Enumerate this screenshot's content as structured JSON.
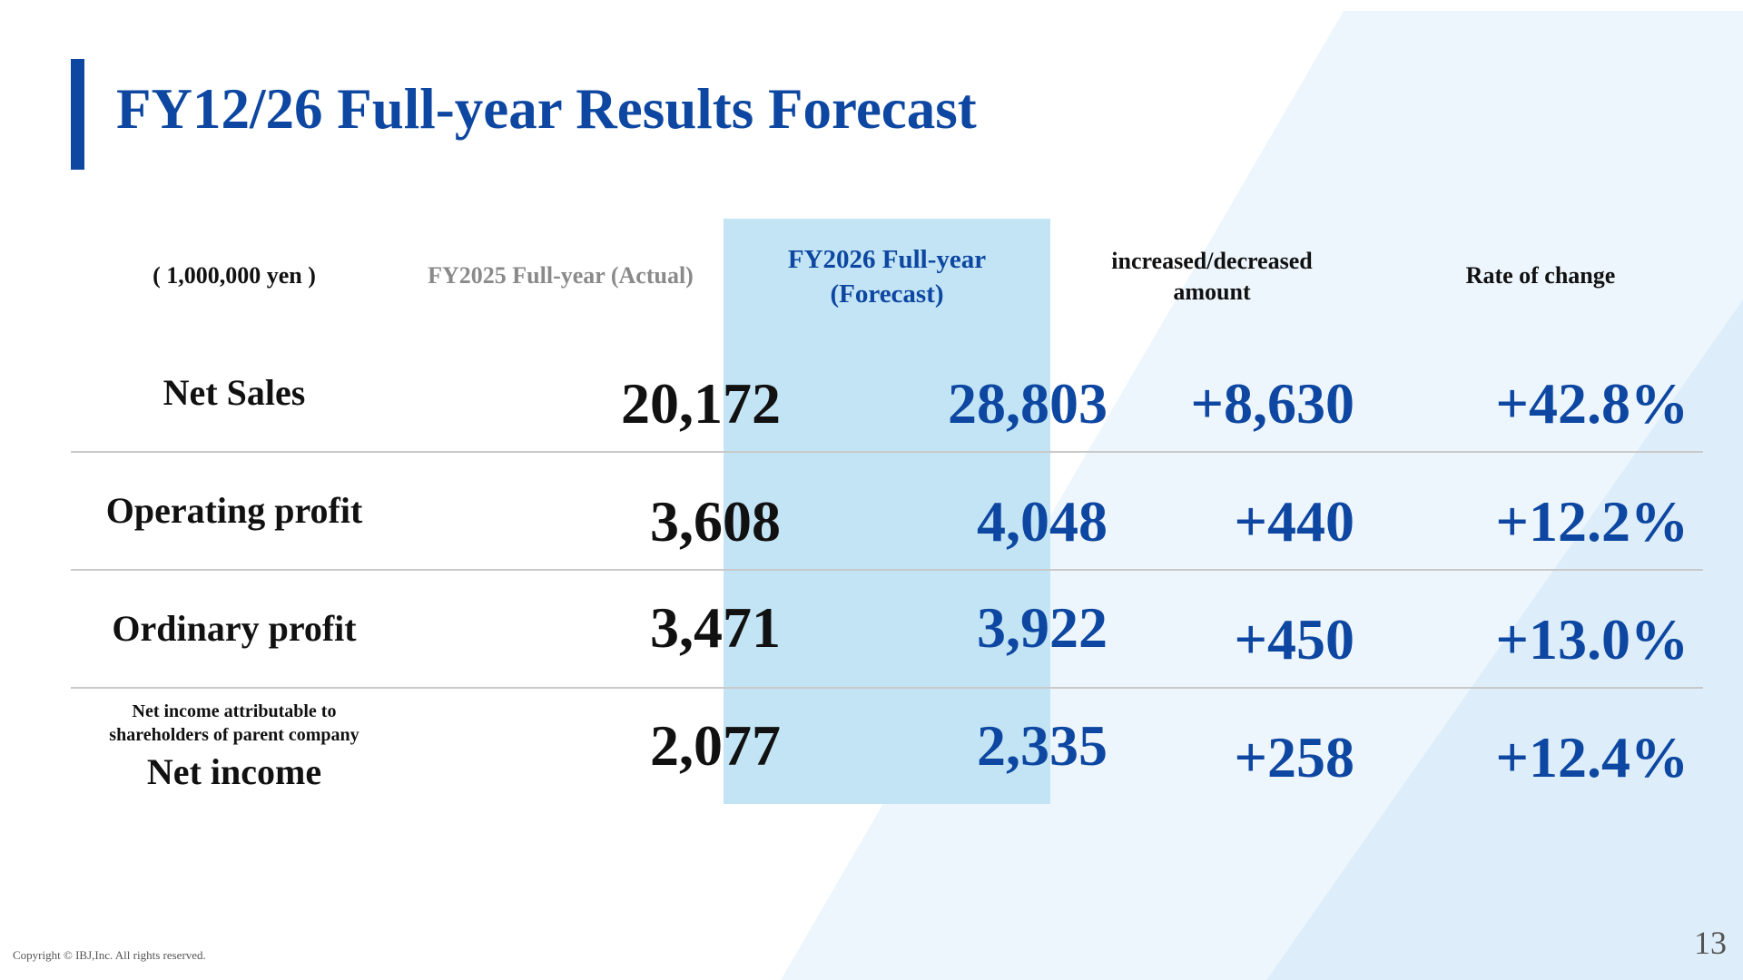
{
  "title": "FY12/26 Full-year Results Forecast",
  "headers": {
    "unit": "( 1,000,000 yen )",
    "prev": "FY2025 Full-year (Actual)",
    "forecast_line1": "FY2026 Full-year",
    "forecast_line2": "(Forecast)",
    "diff_line1": "increased/decreased",
    "diff_line2": "amount",
    "rate": "Rate of change"
  },
  "rows": [
    {
      "label": "Net Sales",
      "prev": "20,172",
      "forecast": "28,803",
      "diff": "+8,630",
      "rate": "+42.8%"
    },
    {
      "label": "Operating profit",
      "prev": "3,608",
      "forecast": "4,048",
      "diff": "+440",
      "rate": "+12.2%"
    },
    {
      "label": "Ordinary profit",
      "prev": "3,471",
      "forecast": "3,922",
      "diff": "+450",
      "rate": "+13.0%"
    },
    {
      "label_small_1": "Net income attributable to",
      "label_small_2": "shareholders of parent company",
      "label": "Net income",
      "prev": "2,077",
      "forecast": "2,335",
      "diff": "+258",
      "rate": "+12.4%"
    }
  ],
  "footer": {
    "copyright": "Copyright © IBJ,Inc. All rights reserved.",
    "page_number": "13"
  },
  "colors": {
    "accent": "#0d47a1",
    "highlight": "#c3e4f4",
    "background_shape_1": "#eef6fd",
    "background_shape_2": "#ddeefa"
  }
}
